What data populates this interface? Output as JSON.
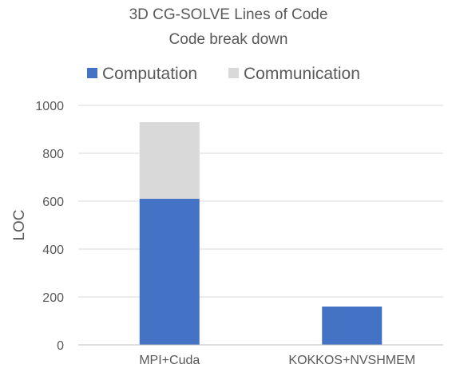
{
  "chart_data": {
    "type": "bar",
    "stacked": true,
    "title": "3D CG-SOLVE Lines of Code",
    "subtitle": "Code break down",
    "ylabel": "LOC",
    "xlabel": "",
    "categories": [
      "MPI+Cuda",
      "KOKKOS+NVSHMEM"
    ],
    "series": [
      {
        "name": "Computation",
        "values": [
          610,
          160
        ],
        "color": "#4472C4"
      },
      {
        "name": "Communication",
        "values": [
          320,
          0
        ],
        "color": "#D9D9D9"
      }
    ],
    "ylim": [
      0,
      1000
    ],
    "yticks": [
      0,
      200,
      400,
      600,
      800,
      1000
    ],
    "grid": true,
    "legend_position": "top"
  }
}
